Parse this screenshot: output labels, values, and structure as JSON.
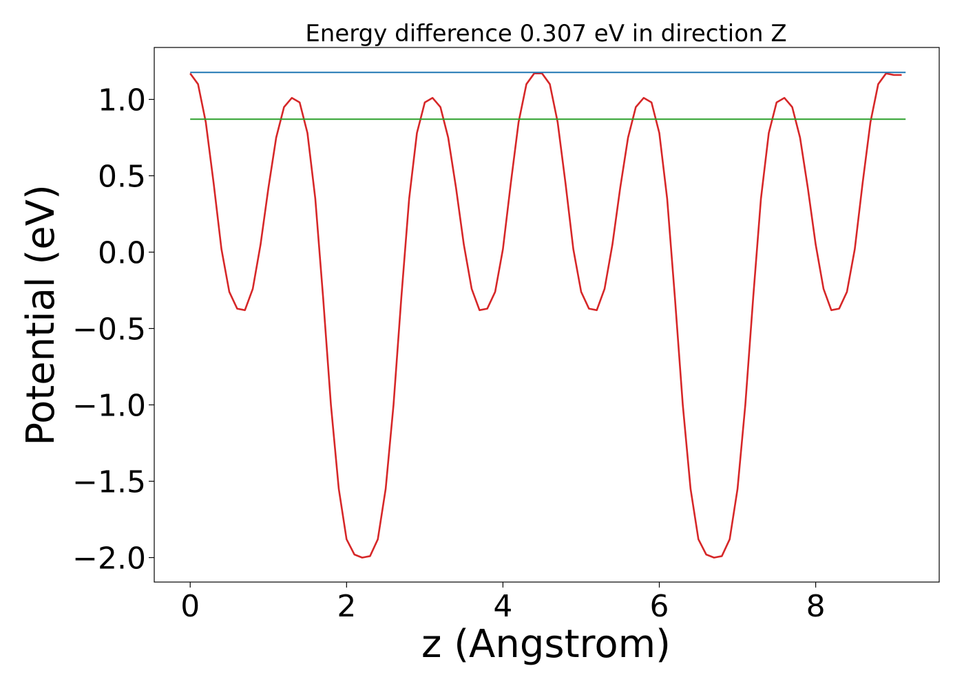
{
  "chart_data": {
    "type": "line",
    "title": "Energy difference 0.307 eV in direction Z",
    "xlabel": "z (Angstrom)",
    "ylabel": "Potential (eV)",
    "xlim": [
      -0.46,
      9.58
    ],
    "ylim": [
      -2.16,
      1.34
    ],
    "xticks": [
      0,
      2,
      4,
      6,
      8
    ],
    "xtick_labels": [
      "0",
      "2",
      "4",
      "6",
      "8"
    ],
    "yticks": [
      1.0,
      0.5,
      0.0,
      -0.5,
      -1.0,
      -1.5,
      -2.0
    ],
    "ytick_labels": [
      "1.0",
      "0.5",
      "0.0",
      "−0.5",
      "−1.0",
      "−1.5",
      "−2.0"
    ],
    "grid": false,
    "legend": "none",
    "series": [
      {
        "color": "#d62728",
        "x": [
          0.0,
          0.1,
          0.2,
          0.3,
          0.4,
          0.5,
          0.6,
          0.7,
          0.8,
          0.9,
          1.0,
          1.1,
          1.2,
          1.3,
          1.4,
          1.5,
          1.6,
          1.7,
          1.8,
          1.9,
          2.0,
          2.1,
          2.2,
          2.3,
          2.4,
          2.5,
          2.6,
          2.7,
          2.8,
          2.9,
          3.0,
          3.1,
          3.2,
          3.3,
          3.4,
          3.5,
          3.6,
          3.7,
          3.8,
          3.9,
          4.0,
          4.1,
          4.2,
          4.3,
          4.4,
          4.5,
          4.6,
          4.7,
          4.8,
          4.9,
          5.0,
          5.1,
          5.2,
          5.3,
          5.4,
          5.5,
          5.6,
          5.7,
          5.8,
          5.9,
          6.0,
          6.1,
          6.2,
          6.3,
          6.4,
          6.5,
          6.6,
          6.7,
          6.8,
          6.9,
          7.0,
          7.1,
          7.2,
          7.3,
          7.4,
          7.5,
          7.6,
          7.7,
          7.8,
          7.9,
          8.0,
          8.1,
          8.2,
          8.3,
          8.4,
          8.5,
          8.6,
          8.7,
          8.8,
          8.9,
          9.0,
          9.1
        ],
        "y": [
          1.17,
          1.1,
          0.85,
          0.45,
          0.02,
          -0.26,
          -0.37,
          -0.38,
          -0.24,
          0.05,
          0.42,
          0.75,
          0.95,
          1.01,
          0.98,
          0.78,
          0.35,
          -0.3,
          -1.0,
          -1.55,
          -1.88,
          -1.98,
          -2.0,
          -1.99,
          -1.88,
          -1.55,
          -1.0,
          -0.3,
          0.35,
          0.78,
          0.98,
          1.01,
          0.95,
          0.75,
          0.42,
          0.05,
          -0.24,
          -0.38,
          -0.37,
          -0.26,
          0.02,
          0.45,
          0.85,
          1.1,
          1.17,
          1.17,
          1.1,
          0.85,
          0.45,
          0.02,
          -0.26,
          -0.37,
          -0.38,
          -0.24,
          0.05,
          0.42,
          0.75,
          0.95,
          1.01,
          0.98,
          0.78,
          0.35,
          -0.3,
          -1.0,
          -1.55,
          -1.88,
          -1.98,
          -2.0,
          -1.99,
          -1.88,
          -1.55,
          -1.0,
          -0.3,
          0.35,
          0.78,
          0.98,
          1.01,
          0.95,
          0.75,
          0.42,
          0.05,
          -0.24,
          -0.38,
          -0.37,
          -0.26,
          0.02,
          0.45,
          0.85,
          1.1,
          1.17,
          1.16,
          1.16
        ]
      },
      {
        "color": "#1f77b4",
        "x": [
          0.0,
          9.15
        ],
        "y": [
          1.177,
          1.177
        ]
      },
      {
        "color": "#2ca02c",
        "x": [
          0.0,
          9.15
        ],
        "y": [
          0.87,
          0.87
        ]
      }
    ]
  }
}
